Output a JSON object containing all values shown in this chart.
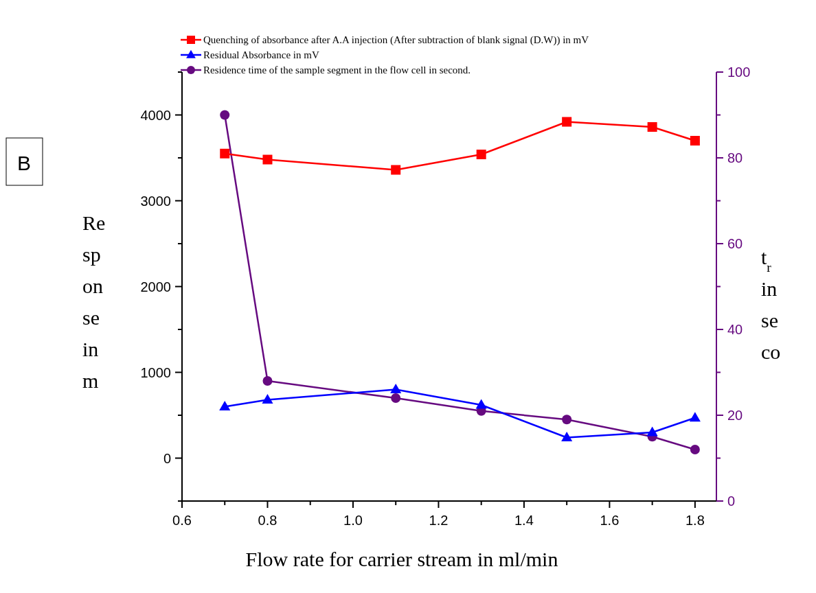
{
  "chart_data": {
    "type": "line",
    "x": [
      0.7,
      0.8,
      1.1,
      1.3,
      1.5,
      1.7,
      1.8
    ],
    "xlim": [
      0.6,
      1.85
    ],
    "xticks": [
      0.6,
      {
        "value": 0.7,
        "label": null
      },
      0.8,
      {
        "value": 0.9,
        "label": null
      },
      {
        "value": 1,
        "label": "1.0"
      },
      {
        "value": 1.1,
        "label": null
      },
      1.2,
      {
        "value": 1.3,
        "label": null
      },
      1.4,
      {
        "value": 1.5,
        "label": null
      },
      1.6,
      {
        "value": 1.7,
        "label": null
      },
      1.8
    ],
    "ylim": [
      -500,
      4500
    ],
    "yticks": [
      {
        "value": -500,
        "label": null
      },
      0,
      {
        "value": 500,
        "label": null
      },
      1000,
      {
        "value": 1500,
        "label": null
      },
      2000,
      {
        "value": 2500,
        "label": null
      },
      3000,
      {
        "value": 3500,
        "label": null
      },
      4000,
      {
        "value": 4500,
        "label": null
      }
    ],
    "y2lim": [
      0,
      100
    ],
    "y2ticks": [
      0,
      {
        "value": 10,
        "label": null
      },
      20,
      {
        "value": 30,
        "label": null
      },
      40,
      {
        "value": 50,
        "label": null
      },
      60,
      {
        "value": 70,
        "label": null
      },
      80,
      {
        "value": 90,
        "label": null
      },
      100
    ],
    "xlabel": "Flow rate for carrier stream in ml/min",
    "ylabel": "Re\nsp\non\nse\nin\nm",
    "y2label": "t$_{r}$\nin\nse\nco",
    "annotations": [
      "B"
    ],
    "legend": "top",
    "series": [
      {
        "name": "Quenching of  absorbance after A.A injection (After subtraction of blank signal (D.W))   in mV",
        "color": "#ff0000",
        "marker": "square",
        "values": [
          3550,
          3480,
          3360,
          3540,
          3920,
          3860,
          3700
        ]
      },
      {
        "name": "Residual Absorbance in mV",
        "color": "#0000ff",
        "marker": "triangle",
        "values": [
          600,
          680,
          800,
          620,
          240,
          300,
          470
        ]
      },
      {
        "name": "Residence time of the sample segment in the flow cell in second.",
        "color": "#660a80",
        "marker": "circle",
        "axis": "y2",
        "values": [
          90,
          28,
          24,
          21,
          19,
          15,
          12
        ]
      }
    ]
  }
}
